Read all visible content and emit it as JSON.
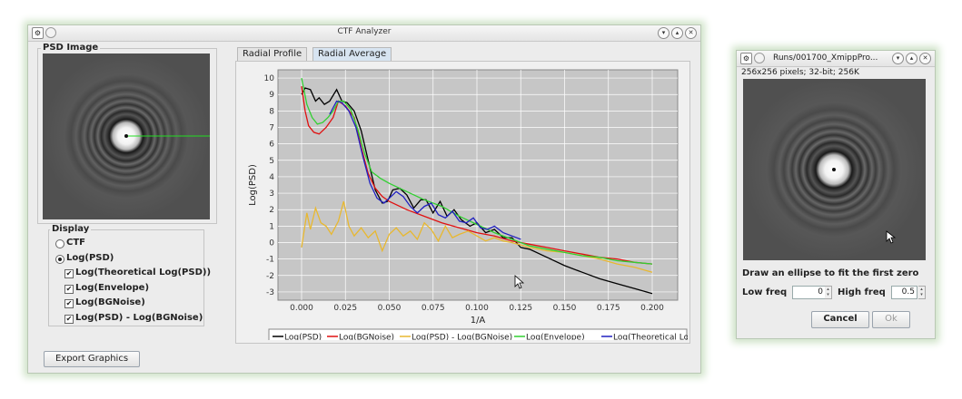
{
  "main_window": {
    "title": "CTF Analyzer",
    "psd_panel_title": "PSD Image",
    "display_title": "Display",
    "display_options": [
      {
        "label": "CTF",
        "type": "radio",
        "checked": false
      },
      {
        "label": "Log(PSD)",
        "type": "radio",
        "checked": true
      },
      {
        "label": "Log(Theoretical Log(PSD))",
        "type": "checkbox",
        "checked": true
      },
      {
        "label": "Log(Envelope)",
        "type": "checkbox",
        "checked": true
      },
      {
        "label": "Log(BGNoise)",
        "type": "checkbox",
        "checked": true
      },
      {
        "label": "Log(PSD) - Log(BGNoise)",
        "type": "checkbox",
        "checked": true
      }
    ],
    "tabs": [
      {
        "label": "Radial Profile",
        "active": false
      },
      {
        "label": "Radial Average",
        "active": true
      }
    ],
    "export_button": "Export Graphics",
    "check_mark": "✔"
  },
  "chart_data": {
    "type": "line",
    "xlabel": "1/A",
    "ylabel": "Log(PSD)",
    "xlim": [
      0,
      0.2
    ],
    "ylim": [
      -3.5,
      10.5
    ],
    "xticks": [
      "0.000",
      "0.025",
      "0.050",
      "0.075",
      "0.100",
      "0.125",
      "0.150",
      "0.175",
      "0.200"
    ],
    "yticks": [
      "10",
      "9",
      "8",
      "7",
      "6",
      "5",
      "4",
      "3",
      "2",
      "1",
      "0",
      "-1",
      "-2",
      "-3"
    ],
    "grid": true,
    "legend_position": "bottom",
    "series": [
      {
        "name": "Log(PSD)",
        "color": "#000000",
        "x": [
          0,
          0.002,
          0.005,
          0.008,
          0.01,
          0.013,
          0.016,
          0.02,
          0.023,
          0.026,
          0.03,
          0.034,
          0.038,
          0.042,
          0.046,
          0.049,
          0.052,
          0.056,
          0.06,
          0.064,
          0.068,
          0.071,
          0.075,
          0.079,
          0.083,
          0.087,
          0.091,
          0.096,
          0.1,
          0.105,
          0.11,
          0.115,
          0.12,
          0.125,
          0.13,
          0.14,
          0.15,
          0.16,
          0.17,
          0.18,
          0.19,
          0.2
        ],
        "y": [
          9.0,
          9.4,
          9.3,
          8.6,
          8.8,
          8.4,
          8.6,
          9.3,
          8.6,
          8.5,
          8.0,
          6.8,
          5.0,
          3.2,
          2.4,
          2.5,
          3.2,
          3.3,
          2.9,
          2.1,
          2.6,
          2.6,
          1.8,
          2.5,
          1.6,
          2.0,
          1.4,
          1.0,
          1.2,
          0.6,
          0.8,
          0.3,
          0.3,
          -0.3,
          -0.4,
          -0.9,
          -1.4,
          -1.8,
          -2.2,
          -2.5,
          -2.8,
          -3.1
        ]
      },
      {
        "name": "Log(BGNoise)",
        "color": "#e01010",
        "x": [
          0,
          0.002,
          0.004,
          0.007,
          0.01,
          0.014,
          0.018,
          0.021,
          0.025,
          0.03,
          0.034,
          0.038,
          0.042,
          0.046,
          0.05,
          0.06,
          0.07,
          0.08,
          0.09,
          0.1,
          0.11,
          0.12,
          0.13,
          0.14,
          0.15,
          0.16,
          0.17,
          0.18,
          0.19,
          0.2
        ],
        "y": [
          9.5,
          8.0,
          7.1,
          6.7,
          6.6,
          7.0,
          7.6,
          8.6,
          8.3,
          7.6,
          5.8,
          4.2,
          3.3,
          2.8,
          2.5,
          2.0,
          1.6,
          1.2,
          0.9,
          0.6,
          0.4,
          0.1,
          -0.1,
          -0.3,
          -0.5,
          -0.7,
          -0.9,
          -1.0,
          -1.2,
          -1.3
        ]
      },
      {
        "name": "Log(PSD) - Log(BGNoise)",
        "color": "#e8b830",
        "x": [
          0,
          0.003,
          0.005,
          0.008,
          0.011,
          0.014,
          0.017,
          0.021,
          0.024,
          0.027,
          0.03,
          0.034,
          0.038,
          0.042,
          0.046,
          0.05,
          0.054,
          0.058,
          0.062,
          0.066,
          0.07,
          0.074,
          0.078,
          0.082,
          0.086,
          0.09,
          0.095,
          0.1,
          0.105,
          0.11,
          0.115,
          0.12,
          0.13,
          0.14,
          0.15,
          0.16,
          0.17,
          0.18,
          0.19,
          0.2
        ],
        "y": [
          -0.3,
          1.8,
          0.8,
          2.1,
          1.2,
          1.0,
          0.5,
          1.3,
          2.5,
          1.0,
          0.4,
          0.9,
          0.3,
          0.7,
          -0.5,
          0.5,
          0.9,
          0.4,
          0.7,
          0.2,
          1.2,
          0.8,
          0.1,
          1.0,
          0.3,
          0.5,
          0.7,
          0.4,
          0.1,
          0.3,
          0.1,
          0.0,
          -0.3,
          -0.5,
          -0.6,
          -0.8,
          -1.0,
          -1.3,
          -1.5,
          -1.8
        ]
      },
      {
        "name": "Log(Envelope)",
        "color": "#30d030",
        "x": [
          0,
          0.003,
          0.006,
          0.009,
          0.012,
          0.015,
          0.018,
          0.021,
          0.024,
          0.028,
          0.032,
          0.036,
          0.04,
          0.045,
          0.05,
          0.06,
          0.07,
          0.08,
          0.09,
          0.1,
          0.11,
          0.12,
          0.13,
          0.14,
          0.15,
          0.16,
          0.17,
          0.18,
          0.19,
          0.2
        ],
        "y": [
          10.0,
          8.4,
          7.6,
          7.2,
          7.3,
          7.6,
          8.0,
          8.6,
          8.6,
          8.1,
          6.9,
          5.4,
          4.3,
          3.9,
          3.6,
          3.1,
          2.6,
          2.2,
          1.6,
          1.1,
          0.6,
          0.2,
          -0.2,
          -0.4,
          -0.6,
          -0.8,
          -0.9,
          -1.1,
          -1.2,
          -1.3
        ]
      },
      {
        "name": "Log(Theoretical Log(PSD))",
        "color": "#2020c0",
        "x": [
          0.016,
          0.02,
          0.023,
          0.027,
          0.031,
          0.035,
          0.039,
          0.043,
          0.047,
          0.05,
          0.054,
          0.058,
          0.062,
          0.066,
          0.07,
          0.074,
          0.078,
          0.082,
          0.086,
          0.09,
          0.094,
          0.098,
          0.102,
          0.106,
          0.11,
          0.115,
          0.12,
          0.125
        ],
        "y": [
          7.8,
          8.6,
          8.5,
          8.0,
          7.0,
          5.2,
          3.6,
          2.7,
          2.4,
          2.7,
          3.1,
          2.8,
          2.2,
          1.8,
          2.2,
          2.4,
          1.7,
          1.5,
          1.9,
          1.3,
          1.2,
          1.5,
          0.9,
          0.8,
          1.0,
          0.6,
          0.4,
          0.2
        ]
      }
    ]
  },
  "side_window": {
    "title": "Runs/001700_XmippPro...",
    "info": "256x256 pixels; 32-bit; 256K",
    "instruction": "Draw an ellipse to fit the first zero",
    "low_freq_label": "Low freq",
    "low_freq_value": "0",
    "high_freq_label": "High freq",
    "high_freq_value": "0.5",
    "cancel_button": "Cancel",
    "ok_button": "Ok"
  }
}
